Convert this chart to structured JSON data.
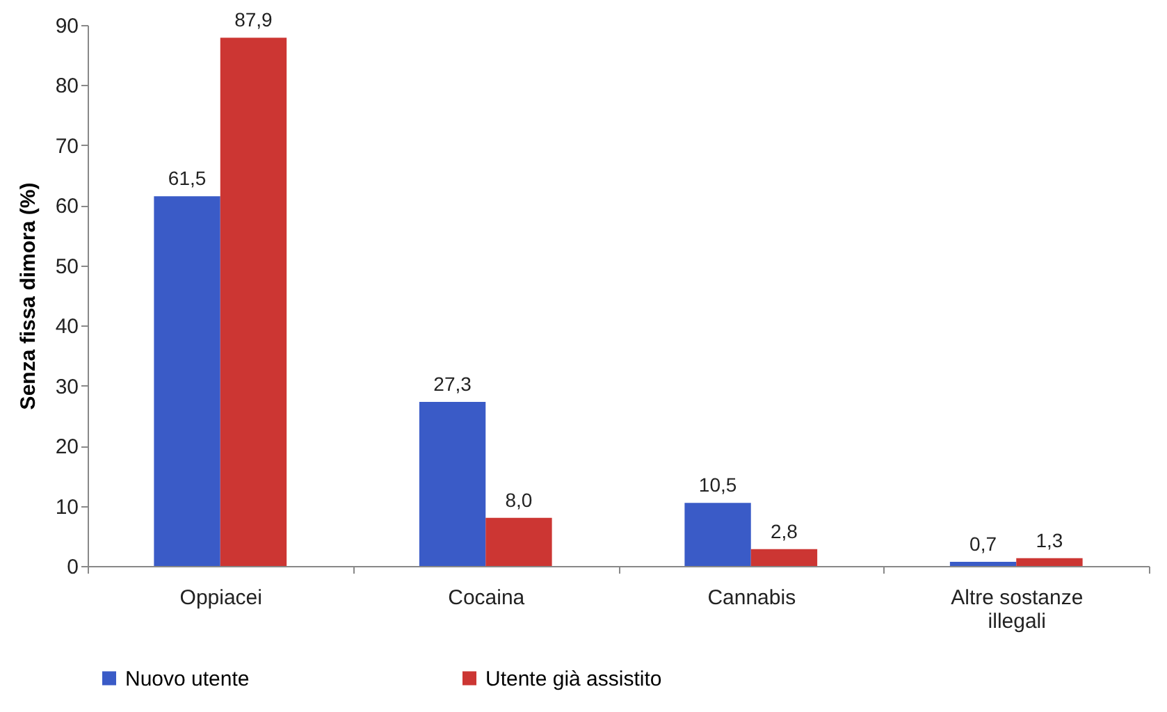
{
  "chart_data": {
    "type": "bar",
    "ylabel": "Senza fissa dimora (%)",
    "categories": [
      "Oppiacei",
      "Cocaina",
      "Cannabis",
      "Altre sostanze illegali"
    ],
    "series": [
      {
        "name": "Nuovo utente",
        "color": "#3a5bc7",
        "values": [
          61.5,
          27.3,
          10.5,
          0.7
        ],
        "value_labels": [
          "61,5",
          "27,3",
          "10,5",
          "0,7"
        ]
      },
      {
        "name": "Utente già assistito",
        "color": "#cc3633",
        "values": [
          87.9,
          8.0,
          2.8,
          1.3
        ],
        "value_labels": [
          "87,9",
          "8,0",
          "2,8",
          "1,3"
        ]
      }
    ],
    "ylim": [
      0,
      90
    ],
    "yticks": [
      0,
      10,
      20,
      30,
      40,
      50,
      60,
      70,
      80,
      90
    ],
    "grid": false,
    "legend": "bottom"
  }
}
